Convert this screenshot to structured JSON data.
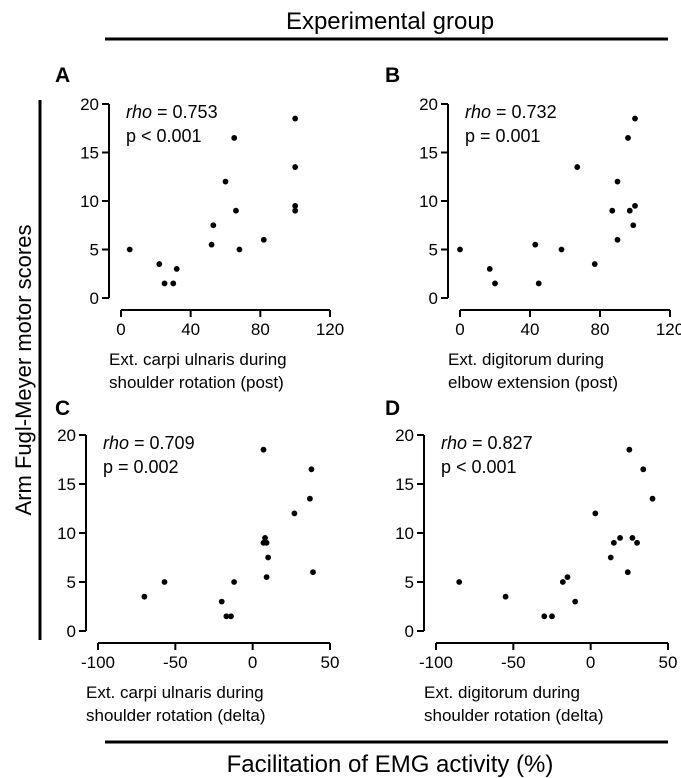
{
  "figure": {
    "top_header": "Experimental group",
    "bottom_header": "Facilitation of EMG activity (%)",
    "ylabel": "Arm Fugl-Meyer motor scores"
  },
  "chart_data": [
    {
      "type": "scatter",
      "panel": "A",
      "stat_rho_label": "rho",
      "stat_rho_value": "= 0.753",
      "stat_p": "p < 0.001",
      "xlabel_line1": "Ext. carpi ulnaris during",
      "xlabel_line2": "shoulder rotation (post)",
      "xlim": [
        0,
        120
      ],
      "ylim": [
        0,
        20
      ],
      "xticks": [
        0,
        40,
        80,
        120
      ],
      "yticks": [
        0,
        5,
        10,
        15,
        20
      ],
      "x": [
        5,
        22,
        25,
        30,
        32,
        52,
        53,
        60,
        65,
        66,
        68,
        82,
        100,
        100,
        100,
        100
      ],
      "y": [
        5,
        3.5,
        1.5,
        1.5,
        3,
        5.5,
        7.5,
        12,
        16.5,
        9,
        5,
        6,
        18.5,
        13.5,
        9.5,
        9
      ]
    },
    {
      "type": "scatter",
      "panel": "B",
      "stat_rho_label": "rho",
      "stat_rho_value": "= 0.732",
      "stat_p": "p = 0.001",
      "xlabel_line1": "Ext.   digitorum   during",
      "xlabel_line2": "elbow extension (post)",
      "xlim": [
        0,
        120
      ],
      "ylim": [
        0,
        20
      ],
      "xticks": [
        0,
        40,
        80,
        120
      ],
      "yticks": [
        0,
        5,
        10,
        15,
        20
      ],
      "x": [
        0,
        17,
        20,
        43,
        45,
        58,
        67,
        77,
        87,
        90,
        90,
        96,
        97,
        99,
        100,
        100
      ],
      "y": [
        5,
        3,
        1.5,
        5.5,
        1.5,
        5,
        13.5,
        3.5,
        9,
        12,
        6,
        16.5,
        9,
        7.5,
        18.5,
        9.5
      ]
    },
    {
      "type": "scatter",
      "panel": "C",
      "stat_rho_label": "rho",
      "stat_rho_value": "= 0.709",
      "stat_p": "p = 0.002",
      "xlabel_line1": "Ext. carpi ulnaris during",
      "xlabel_line2": "shoulder rotation (delta)",
      "xlim": [
        -100,
        50
      ],
      "ylim": [
        0,
        20
      ],
      "xticks": [
        -100,
        -50,
        0,
        50
      ],
      "yticks": [
        0,
        5,
        10,
        15,
        20
      ],
      "x": [
        -70,
        -57,
        -20,
        -17,
        -14,
        -12,
        7,
        7,
        8,
        9,
        9,
        10,
        27,
        37,
        38,
        39
      ],
      "y": [
        3.5,
        5,
        3,
        1.5,
        1.5,
        5,
        9,
        18.5,
        9.5,
        5.5,
        9,
        7.5,
        12,
        13.5,
        16.5,
        6
      ]
    },
    {
      "type": "scatter",
      "panel": "D",
      "stat_rho_label": "rho",
      "stat_rho_value": "= 0.827",
      "stat_p": "p < 0.001",
      "xlabel_line1": "Ext.   digitorum   during",
      "xlabel_line2": "shoulder rotation (delta)",
      "xlim": [
        -100,
        50
      ],
      "ylim": [
        0,
        20
      ],
      "xticks": [
        -100,
        -50,
        0,
        50
      ],
      "yticks": [
        0,
        5,
        10,
        15,
        20
      ],
      "x": [
        -85,
        -55,
        -30,
        -25,
        -18,
        -15,
        -10,
        3,
        13,
        15,
        19,
        24,
        25,
        27,
        30,
        34,
        40
      ],
      "y": [
        5,
        3.5,
        1.5,
        1.5,
        5,
        5.5,
        3,
        12,
        7.5,
        9,
        9.5,
        6,
        18.5,
        9.5,
        9,
        16.5,
        13.5
      ]
    }
  ]
}
